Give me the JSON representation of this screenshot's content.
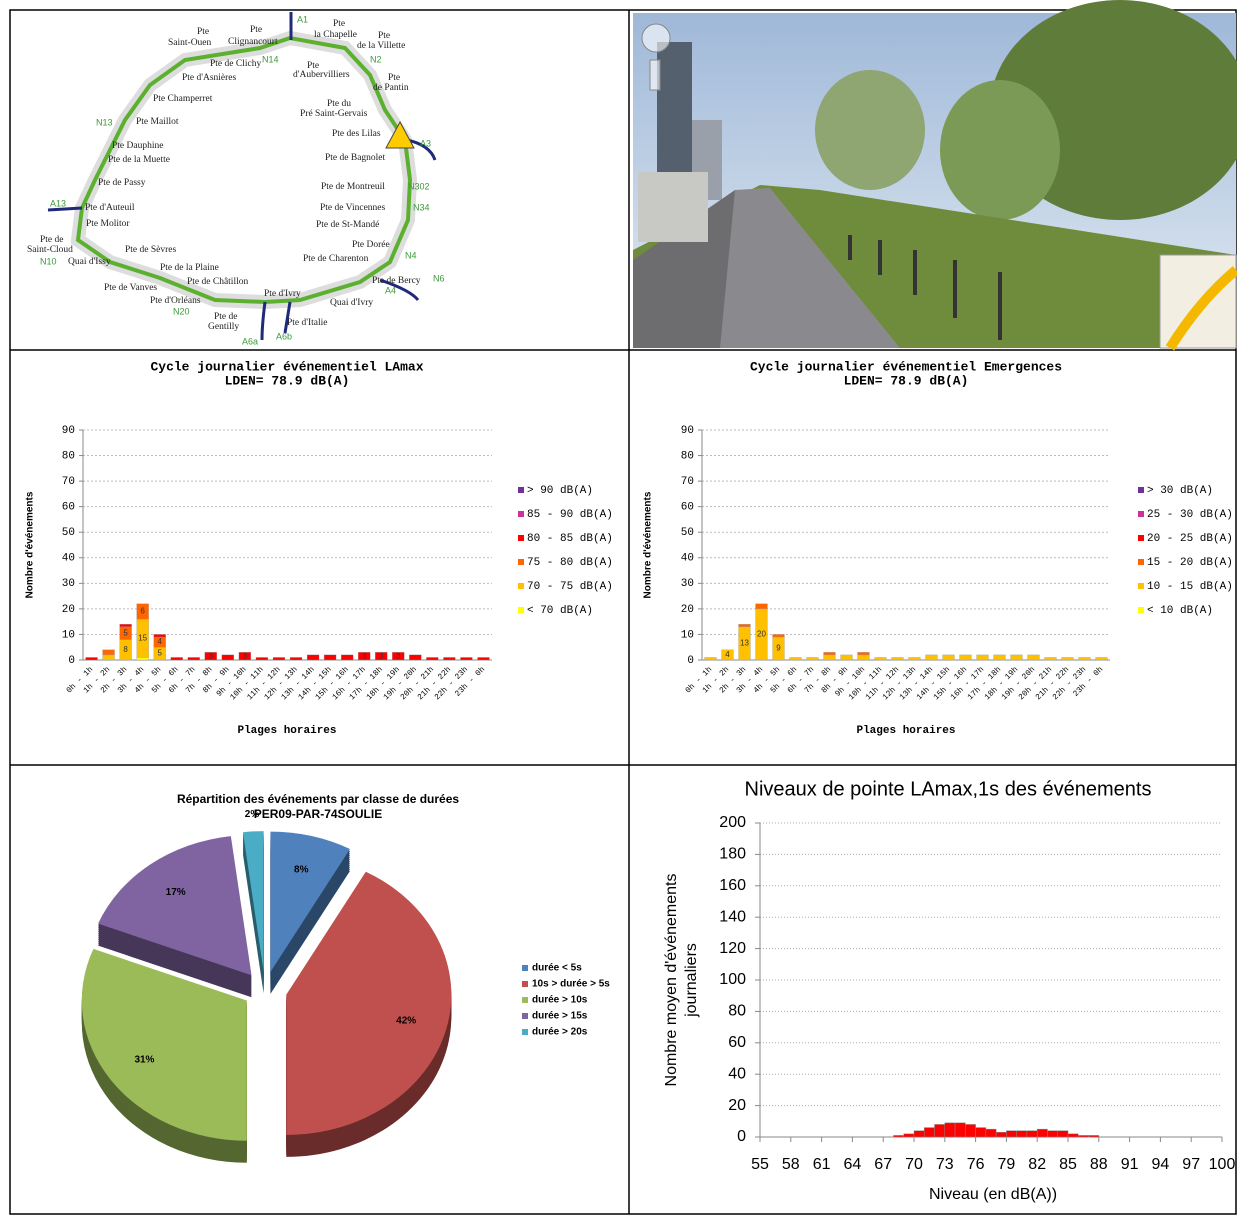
{
  "map": {
    "labels": [
      "Pte",
      "Saint-Ouen",
      "Pte",
      "Clignancourt",
      "Pte",
      "la Chapelle",
      "Pte",
      "de la Villette",
      "Pte de Clichy",
      "Pte d'Asnières",
      "Pte",
      "d'Aubervilliers",
      "Pte",
      "de Pantin",
      "Pte Champerret",
      "Pte du",
      "Pré Saint-Gervais",
      "Pte Maillot",
      "Pte des Lilas",
      "Pte Dauphine",
      "Pte de la Muette",
      "Pte de Bagnolet",
      "Pte de Passy",
      "Pte de Montreuil",
      "Pte d'Auteuil",
      "Pte de Vincennes",
      "Pte Molitor",
      "Pte de St-Mandé",
      "Pte de",
      "Saint-Cloud",
      "Pte de Sèvres",
      "Pte Dorée",
      "Quai d'Issy",
      "Pte de Charenton",
      "Pte de la Plaine",
      "Pte de Bercy",
      "Pte de Châtillon",
      "Pte de Vanves",
      "Pte d'Ivry",
      "Pte d'Orléans",
      "Quai d'Ivry",
      "Pte de",
      "Gentilly",
      "Pte d'Italie"
    ],
    "roads": [
      "A1",
      "N14",
      "N2",
      "N13",
      "A3",
      "N302",
      "A13",
      "N34",
      "N4",
      "N10",
      "N6",
      "A4",
      "N20",
      "A6a",
      "A6b"
    ]
  },
  "chart_data": [
    {
      "type": "stacked_bar",
      "title": "Cycle journalier événementiel LAmax",
      "subtitle": "LDEN= 78.9 dB(A)",
      "ylabel": "Nombre d'événements",
      "xlabel": "Plages horaires",
      "categories": [
        "0h - 1h",
        "1h - 2h",
        "2h - 3h",
        "3h - 4h",
        "4h - 5h",
        "5h - 6h",
        "6h - 7h",
        "7h - 8h",
        "8h - 9h",
        "9h - 10h",
        "10h - 11h",
        "11h - 12h",
        "12h - 13h",
        "13h - 14h",
        "14h - 15h",
        "15h - 16h",
        "16h - 17h",
        "17h - 18h",
        "18h - 19h",
        "19h - 20h",
        "20h - 21h",
        "21h - 22h",
        "22h - 23h",
        "23h - 0h"
      ],
      "series": [
        {
          "name": "> 90 dB(A)",
          "color": "#7030a0",
          "values": [
            0,
            0,
            0,
            0,
            0,
            0,
            0,
            0,
            0,
            0,
            0,
            0,
            0,
            0,
            0,
            0,
            0,
            0,
            0,
            0,
            0,
            0,
            0,
            0
          ]
        },
        {
          "name": "85 - 90 dB(A)",
          "color": "#cc3399",
          "values": [
            0,
            0,
            0,
            0,
            0,
            0,
            0,
            0,
            0,
            0,
            0,
            0,
            0,
            0,
            0,
            0,
            0,
            0,
            0,
            0,
            0,
            0,
            0,
            0
          ]
        },
        {
          "name": "80 - 85 dB(A)",
          "color": "#ff0000",
          "values": [
            1,
            0,
            1,
            0,
            1,
            1,
            1,
            3,
            2,
            3,
            1,
            1,
            1,
            2,
            2,
            2,
            3,
            3,
            3,
            2,
            1,
            1,
            1,
            1
          ]
        },
        {
          "name": "75 - 80 dB(A)",
          "color": "#ff6600",
          "values": [
            0,
            2,
            5,
            6,
            4,
            0,
            0,
            0,
            0,
            0,
            0,
            0,
            0,
            0,
            0,
            0,
            0,
            0,
            0,
            0,
            0,
            0,
            0,
            0
          ]
        },
        {
          "name": "70 - 75 dB(A)",
          "color": "#ffc000",
          "values": [
            0,
            2,
            8,
            15,
            5,
            0,
            0,
            0,
            0,
            0,
            0,
            0,
            0,
            0,
            0,
            0,
            0,
            0,
            0,
            0,
            0,
            0,
            0,
            0
          ]
        },
        {
          "name": "< 70 dB(A)",
          "color": "#ffff00",
          "values": [
            0,
            0,
            0,
            1,
            0,
            0,
            0,
            0,
            0,
            0,
            0,
            0,
            0,
            0,
            0,
            0,
            0,
            0,
            0,
            0,
            0,
            0,
            0,
            0
          ]
        }
      ],
      "ylim": [
        0,
        90
      ],
      "yticks": [
        0,
        10,
        20,
        30,
        40,
        50,
        60,
        70,
        80,
        90
      ],
      "grid": true
    },
    {
      "type": "stacked_bar",
      "title": "Cycle journalier événementiel Emergences",
      "subtitle": "LDEN= 78.9 dB(A)",
      "ylabel": "Nombre d'événements",
      "xlabel": "Plages horaires",
      "categories": [
        "0h - 1h",
        "1h - 2h",
        "2h - 3h",
        "3h - 4h",
        "4h - 5h",
        "5h - 6h",
        "6h - 7h",
        "7h - 8h",
        "8h - 9h",
        "9h - 10h",
        "10h - 11h",
        "11h - 12h",
        "12h - 13h",
        "13h - 14h",
        "14h - 15h",
        "15h - 16h",
        "16h - 17h",
        "17h - 18h",
        "18h - 19h",
        "19h - 20h",
        "20h - 21h",
        "21h - 22h",
        "22h - 23h",
        "23h - 0h"
      ],
      "series": [
        {
          "name": "> 30 dB(A)",
          "color": "#7030a0",
          "values": [
            0,
            0,
            0,
            0,
            0,
            0,
            0,
            0,
            0,
            0,
            0,
            0,
            0,
            0,
            0,
            0,
            0,
            0,
            0,
            0,
            0,
            0,
            0,
            0
          ]
        },
        {
          "name": "25 - 30 dB(A)",
          "color": "#cc3399",
          "values": [
            0,
            0,
            0,
            0,
            0,
            0,
            0,
            0,
            0,
            0,
            0,
            0,
            0,
            0,
            0,
            0,
            0,
            0,
            0,
            0,
            0,
            0,
            0,
            0
          ]
        },
        {
          "name": "20 - 25 dB(A)",
          "color": "#ff0000",
          "values": [
            0,
            0,
            0,
            0,
            0,
            0,
            0,
            0,
            0,
            0,
            0,
            0,
            0,
            0,
            0,
            0,
            0,
            0,
            0,
            0,
            0,
            0,
            0,
            0
          ]
        },
        {
          "name": "15 - 20 dB(A)",
          "color": "#ff6600",
          "values": [
            0,
            0,
            1,
            2,
            1,
            0,
            0,
            1,
            0,
            1,
            0,
            0,
            0,
            0,
            0,
            0,
            0,
            0,
            0,
            0,
            0,
            0,
            0,
            0
          ]
        },
        {
          "name": "10 - 15 dB(A)",
          "color": "#ffc000",
          "values": [
            1,
            4,
            13,
            20,
            9,
            1,
            1,
            2,
            2,
            2,
            1,
            1,
            1,
            2,
            2,
            2,
            2,
            2,
            2,
            2,
            1,
            1,
            1,
            1
          ]
        },
        {
          "name": "< 10 dB(A)",
          "color": "#ffff00",
          "values": [
            0,
            0,
            0,
            0,
            0,
            0,
            0,
            0,
            0,
            0,
            0,
            0,
            0,
            0,
            0,
            0,
            0,
            0,
            0,
            0,
            0,
            0,
            0,
            0
          ]
        }
      ],
      "ylim": [
        0,
        90
      ],
      "yticks": [
        0,
        10,
        20,
        30,
        40,
        50,
        60,
        70,
        80,
        90
      ],
      "grid": true
    },
    {
      "type": "pie",
      "title": "Répartition des événements par classe de durées",
      "subtitle": "PER09-PAR-74SOULIE",
      "categories": [
        "durée < 5s",
        "10s > durée > 5s",
        "durée > 10s",
        "durée > 15s",
        "durée > 20s"
      ],
      "values": [
        8,
        42,
        31,
        17,
        2
      ],
      "value_labels": [
        "8%",
        "42%",
        "31%",
        "17%",
        "2%"
      ],
      "colors": [
        "#4f81bd",
        "#c0504d",
        "#9bbb59",
        "#8064a2",
        "#4bacc6"
      ],
      "legend": "right"
    },
    {
      "type": "histogram",
      "title": "Niveaux de pointe LAmax,1s des événements",
      "ylabel": [
        "Nombre moyen d'événements",
        "journaliers"
      ],
      "xlabel": "Niveau (en dB(A))",
      "bins": [
        55,
        56,
        57,
        58,
        59,
        60,
        61,
        62,
        63,
        64,
        65,
        66,
        67,
        68,
        69,
        70,
        71,
        72,
        73,
        74,
        75,
        76,
        77,
        78,
        79,
        80,
        81,
        82,
        83,
        84,
        85,
        86,
        87,
        88,
        89,
        90,
        91,
        92,
        93,
        94,
        95,
        96,
        97,
        98,
        99,
        100
      ],
      "values": [
        0,
        0,
        0,
        0,
        0,
        0,
        0,
        0,
        0,
        0,
        0,
        0,
        0,
        1,
        2,
        4,
        6,
        8,
        9,
        9,
        8,
        6,
        5,
        3,
        4,
        4,
        4,
        5,
        4,
        4,
        2,
        1,
        1,
        0,
        0,
        0,
        0,
        0,
        0,
        0,
        0,
        0,
        0,
        0,
        0
      ],
      "color": "#ff0000",
      "xlim": [
        55,
        100
      ],
      "xticks": [
        55,
        58,
        61,
        64,
        67,
        70,
        73,
        76,
        79,
        82,
        85,
        88,
        91,
        94,
        97,
        100
      ],
      "ylim": [
        0,
        200
      ],
      "yticks": [
        0,
        20,
        40,
        60,
        80,
        100,
        120,
        140,
        160,
        180,
        200
      ],
      "grid": true
    }
  ]
}
